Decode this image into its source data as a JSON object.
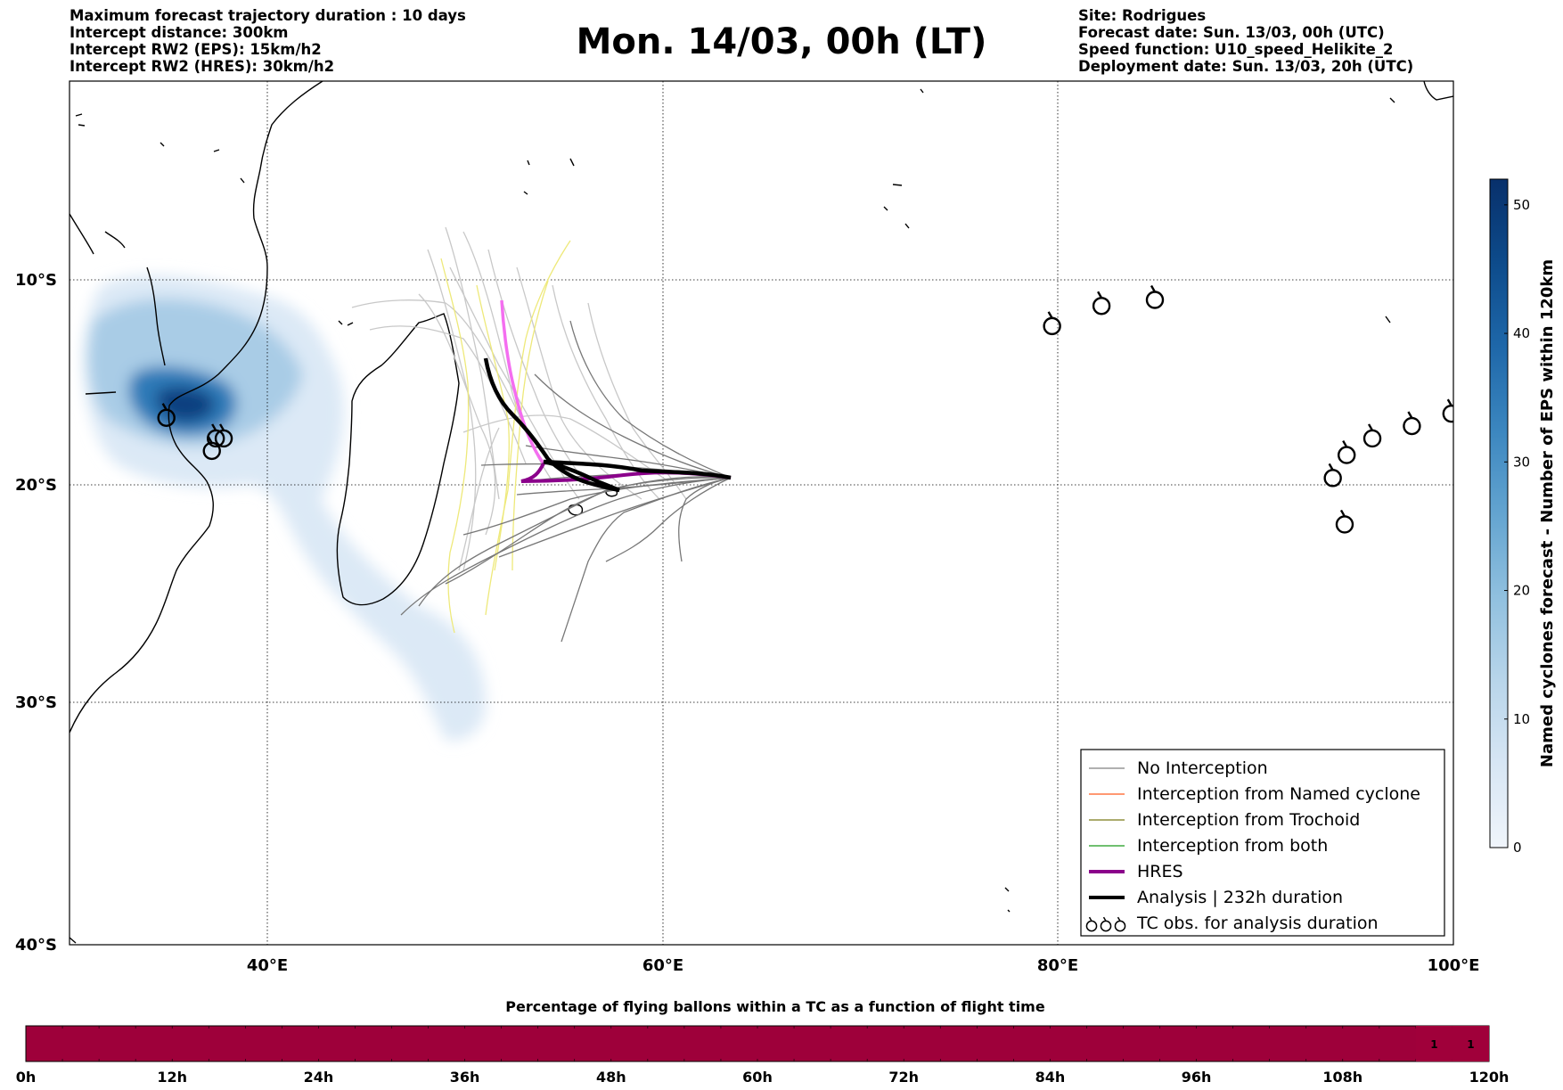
{
  "title": "Mon. 14/03, 00h (LT)",
  "header_left": [
    "Maximum forecast trajectory duration : 10 days",
    "Intercept distance: 300km",
    "Intercept RW2 (EPS):  15km/h2",
    "Intercept RW2 (HRES): 30km/h2"
  ],
  "header_right": [
    "Site: Rodrigues",
    "Forecast date: Sun. 13/03, 00h (UTC)",
    "Speed function: U10_speed_Helikite_2",
    "Deployment date: Sun. 13/03, 20h (UTC)"
  ],
  "map": {
    "lon_range": [
      30,
      100
    ],
    "lat_range": [
      -40,
      -0.2
    ],
    "lon_ticks": [
      {
        "v": 40,
        "label": "40°E"
      },
      {
        "v": 60,
        "label": "60°E"
      },
      {
        "v": 80,
        "label": "80°E"
      },
      {
        "v": 100,
        "label": "100°E"
      }
    ],
    "lat_ticks": [
      {
        "v": -10,
        "label": "10°S"
      },
      {
        "v": -20,
        "label": "20°S"
      },
      {
        "v": -30,
        "label": "30°S"
      },
      {
        "v": -40,
        "label": "40°S"
      }
    ],
    "legend": [
      {
        "label": "No Interception",
        "color": "#808080",
        "width": 1.2,
        "type": "line"
      },
      {
        "label": "Interception from Named cyclone",
        "color": "#ff5a1e",
        "width": 1.2,
        "type": "line"
      },
      {
        "label": "Interception from Trochoid",
        "color": "#7a7a18",
        "width": 1.2,
        "type": "line"
      },
      {
        "label": "Interception from both",
        "color": "#1a9a1a",
        "width": 1.2,
        "type": "line"
      },
      {
        "label": "HRES",
        "color": "#8b008b",
        "width": 4,
        "type": "line"
      },
      {
        "label": "Analysis | 232h duration",
        "color": "#000000",
        "width": 4,
        "type": "line"
      },
      {
        "label": "TC obs. for analysis duration",
        "color": "#000000",
        "type": "symbol"
      }
    ],
    "tc_obs": [
      [
        34.9,
        -16.8
      ],
      [
        37.4,
        -17.8
      ],
      [
        37.8,
        -17.8
      ],
      [
        37.2,
        -18.4
      ],
      [
        79.7,
        -12.3
      ],
      [
        82.2,
        -11.3
      ],
      [
        84.9,
        -11.0
      ],
      [
        93.9,
        -19.7
      ],
      [
        94.6,
        -18.6
      ],
      [
        95.9,
        -17.8
      ],
      [
        97.9,
        -17.2
      ],
      [
        99.9,
        -16.6
      ],
      [
        101.0,
        -16.1
      ],
      [
        94.5,
        -21.9
      ]
    ]
  },
  "colorbar": {
    "label": "Named cyclones forecast - Number of EPS within 120km",
    "min": 0,
    "max": 52,
    "ticks": [
      0,
      10,
      20,
      30,
      40,
      50
    ],
    "colors": [
      "#f0f5fb",
      "#d7e6f4",
      "#b8d5ea",
      "#90c0df",
      "#63a4d0",
      "#3b86bf",
      "#1e67a9",
      "#0d4b8b",
      "#08306b"
    ]
  },
  "timeline": {
    "title": "Percentage of flying ballons within a TC as a function of flight time",
    "ticks": [
      "0h",
      "12h",
      "24h",
      "36h",
      "48h",
      "60h",
      "72h",
      "84h",
      "96h",
      "108h",
      "120h"
    ],
    "max_hours": 120,
    "bar_color": "#9e003a",
    "cell_hours": 3,
    "cell_values": [
      {
        "start_h": 114,
        "value": "1"
      },
      {
        "start_h": 117,
        "value": "1"
      }
    ]
  }
}
